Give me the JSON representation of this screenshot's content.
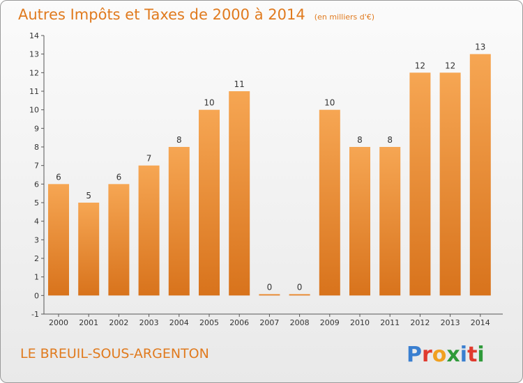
{
  "chart_data": {
    "type": "bar",
    "title": "Autres Impôts et Taxes de 2000 à 2014",
    "subtitle": "(en milliers d'€)",
    "categories": [
      "2000",
      "2001",
      "2002",
      "2003",
      "2004",
      "2005",
      "2006",
      "2007",
      "2008",
      "2009",
      "2010",
      "2011",
      "2012",
      "2013",
      "2014"
    ],
    "values": [
      6,
      5,
      6,
      7,
      8,
      10,
      11,
      0,
      0,
      10,
      8,
      8,
      12,
      12,
      13
    ],
    "data_labels": [
      "6",
      "5",
      "6",
      "7",
      "8",
      "10",
      "11",
      "0",
      "0",
      "10",
      "8",
      "8",
      "12",
      "12",
      "13"
    ],
    "ylim": [
      -1,
      14
    ],
    "y_ticks": [
      "-1",
      "0",
      "1",
      "2",
      "3",
      "4",
      "5",
      "6",
      "7",
      "8",
      "9",
      "10",
      "11",
      "12",
      "13",
      "14"
    ],
    "grid": false,
    "bar_color": "#f0902f"
  },
  "footer": {
    "commune": "LE BREUIL-SOUS-ARGENTON",
    "logo": [
      "P",
      "r",
      "o",
      "x",
      "i",
      "t",
      "i"
    ]
  }
}
